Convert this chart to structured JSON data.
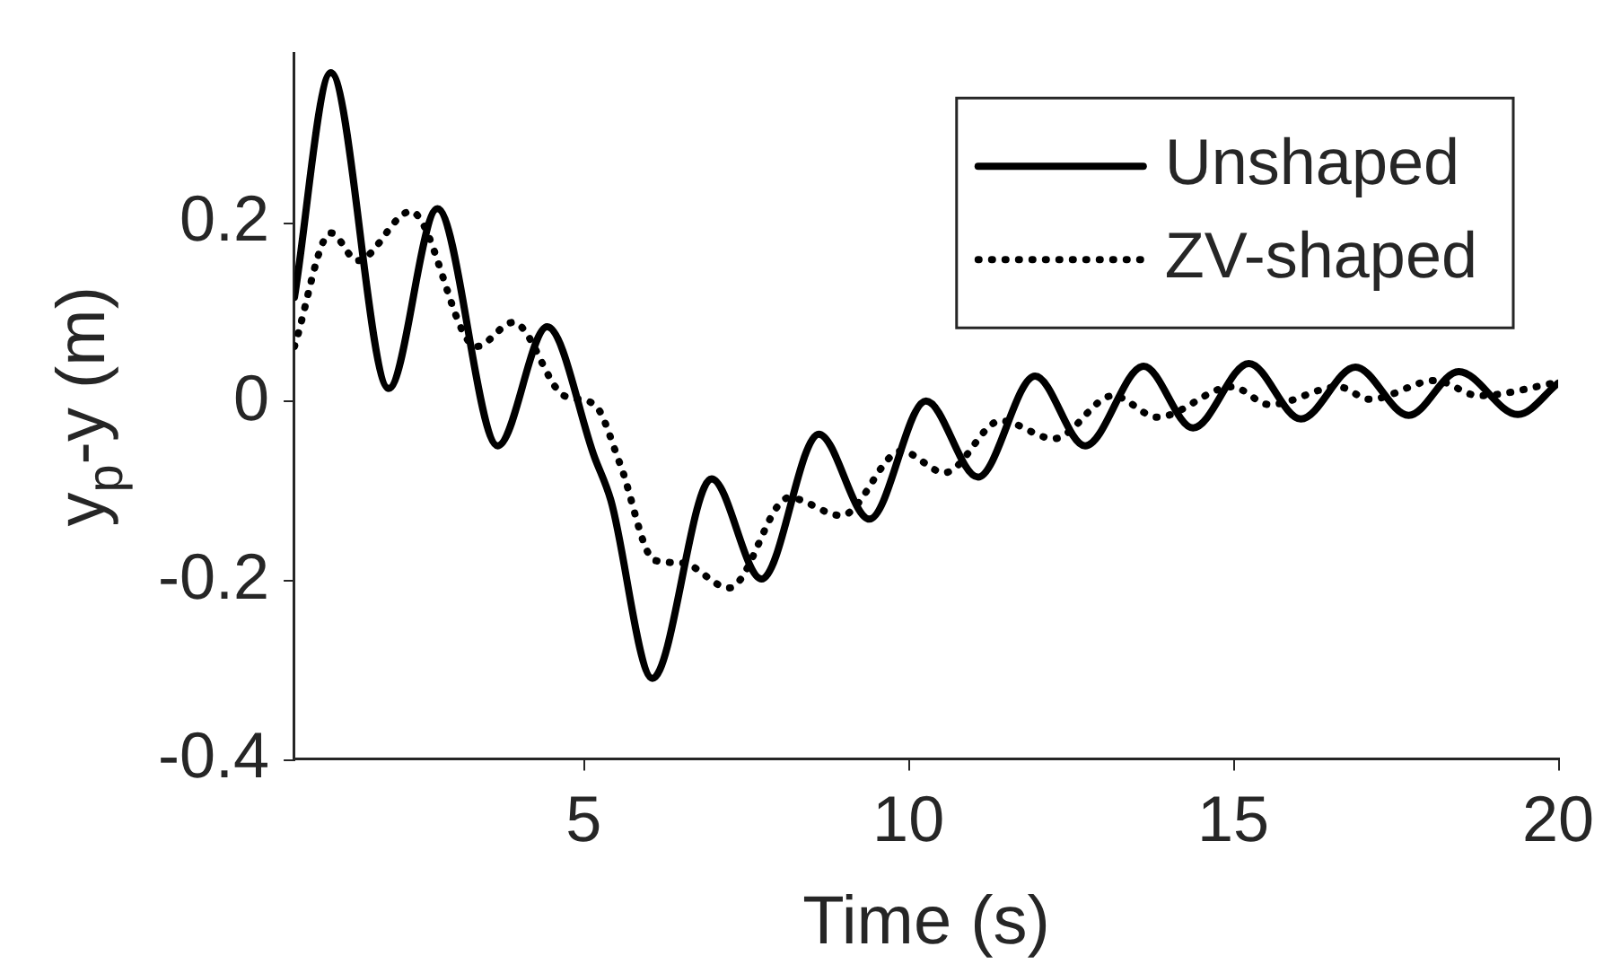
{
  "chart_data": {
    "type": "line",
    "xlabel": "Time (s)",
    "ylabel": "y$_{p}$-y (m)",
    "xlim": [
      0.55,
      20
    ],
    "xticks": [
      5,
      10,
      15,
      20
    ],
    "ylim": [
      -0.4,
      0.39
    ],
    "yticks": [
      -0.4,
      -0.2,
      0,
      0.2
    ],
    "legend": "top right",
    "marker": "none",
    "series": [
      {
        "name": "Unshaped",
        "color": "#000000",
        "line_style": "solid",
        "x": [
          0.55,
          1.11,
          2.0,
          2.75,
          3.68,
          4.44,
          5.17,
          5.42,
          6.06,
          6.97,
          7.74,
          8.62,
          9.4,
          10.27,
          11.07,
          11.95,
          12.72,
          13.62,
          14.38,
          15.24,
          16.04,
          16.88,
          17.7,
          18.47,
          19.38,
          20
        ],
        "values": [
          0.117,
          0.368,
          0.015,
          0.216,
          -0.049,
          0.084,
          -0.062,
          -0.11,
          -0.309,
          -0.086,
          -0.198,
          -0.036,
          -0.131,
          0.001,
          -0.084,
          0.029,
          -0.049,
          0.04,
          -0.029,
          0.043,
          -0.019,
          0.039,
          -0.015,
          0.034,
          -0.014,
          0.021
        ]
      },
      {
        "name": "ZV-shaped",
        "color": "#000000",
        "line_style": "dotted",
        "x": [
          0.55,
          1.11,
          1.52,
          2.34,
          3.35,
          3.92,
          4.7,
          5.17,
          5.56,
          6.09,
          6.52,
          7.24,
          8.16,
          8.97,
          9.89,
          10.56,
          11.42,
          12.24,
          13.15,
          13.83,
          14.98,
          15.56,
          16.62,
          17.1,
          18.11,
          18.78,
          20
        ],
        "values": [
          0.062,
          0.189,
          0.158,
          0.213,
          0.062,
          0.089,
          0.007,
          -0.003,
          -0.069,
          -0.177,
          -0.18,
          -0.208,
          -0.107,
          -0.127,
          -0.055,
          -0.079,
          -0.021,
          -0.041,
          0.007,
          -0.017,
          0.017,
          -0.003,
          0.017,
          0.003,
          0.024,
          0.007,
          0.022
        ]
      }
    ]
  }
}
